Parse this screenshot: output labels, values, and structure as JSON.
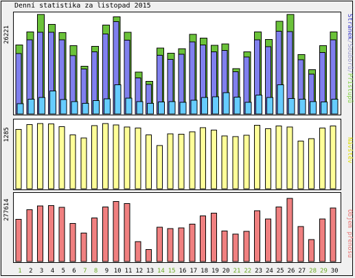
{
  "title": "Denní statistika za listopad 2015",
  "panels": {
    "traffic": {
      "ymax_label": "26221",
      "legend": [
        {
          "text": "Stránek",
          "color": "#3737c8"
        },
        {
          "text": "/",
          "color": "#9999cc"
        },
        {
          "text": "Souborů",
          "color": "#9999cc"
        },
        {
          "text": "/",
          "color": "#9999cc"
        },
        {
          "text": "Přístupů",
          "color": "#80d040"
        }
      ]
    },
    "visits": {
      "ymax_label": "1285",
      "legend_text": "Návštěv",
      "legend_color": "#dddd00"
    },
    "bytes": {
      "ymax_label": "277614",
      "legend_text": "Objem přenosu",
      "legend_color": "#e87070"
    }
  },
  "colors": {
    "hits": "#6bc23a",
    "files": "#8080ee",
    "pages": "#66ccff",
    "visits": "#ffff99",
    "bytes": "#f08080",
    "weekday_label": "#000000",
    "weekend_label": "#6aaa22"
  },
  "chart_data": [
    {
      "type": "bar",
      "title": "Denní statistika za listopad 2015",
      "categories": [
        "1",
        "2",
        "3",
        "4",
        "5",
        "6",
        "7",
        "8",
        "9",
        "10",
        "11",
        "12",
        "13",
        "14",
        "15",
        "16",
        "17",
        "18",
        "19",
        "20",
        "21",
        "22",
        "23",
        "24",
        "25",
        "26",
        "27",
        "28",
        "29",
        "30"
      ],
      "weekend_days": [
        "1",
        "7",
        "8",
        "14",
        "15",
        "21",
        "22",
        "28",
        "29"
      ],
      "ylim": [
        0,
        26221
      ],
      "series": [
        {
          "name": "Přístupů",
          "values": [
            18200,
            21600,
            26200,
            23600,
            21400,
            18000,
            12600,
            17800,
            23400,
            25600,
            21500,
            11000,
            8600,
            17400,
            16000,
            17200,
            21000,
            20000,
            18100,
            18400,
            11900,
            16400,
            21600,
            19600,
            24400,
            26200,
            15600,
            11700,
            18000,
            21600
          ]
        },
        {
          "name": "Souborů",
          "values": [
            15900,
            19500,
            21500,
            21500,
            19500,
            15400,
            11800,
            16400,
            21100,
            24300,
            19400,
            9500,
            7800,
            15500,
            14400,
            15700,
            19000,
            18200,
            16400,
            16700,
            11100,
            15000,
            19500,
            17700,
            21800,
            21700,
            14300,
            10500,
            16200,
            19500
          ]
        },
        {
          "name": "Stránek",
          "values": [
            2700,
            3900,
            4300,
            6100,
            3800,
            3300,
            2800,
            3500,
            4000,
            7700,
            4200,
            3300,
            2800,
            3200,
            3300,
            3100,
            3600,
            4300,
            4500,
            5600,
            4400,
            3100,
            5000,
            4300,
            7700,
            4100,
            3900,
            3300,
            3200,
            3900
          ]
        }
      ]
    },
    {
      "type": "bar",
      "categories": [
        "1",
        "2",
        "3",
        "4",
        "5",
        "6",
        "7",
        "8",
        "9",
        "10",
        "11",
        "12",
        "13",
        "14",
        "15",
        "16",
        "17",
        "18",
        "19",
        "20",
        "21",
        "22",
        "23",
        "24",
        "25",
        "26",
        "27",
        "28",
        "29",
        "30"
      ],
      "ylim": [
        0,
        1285
      ],
      "series": [
        {
          "name": "Návštěv",
          "values": [
            1170,
            1265,
            1285,
            1275,
            1225,
            1060,
            1000,
            1245,
            1285,
            1260,
            1215,
            1200,
            1060,
            850,
            1085,
            1075,
            1120,
            1205,
            1155,
            1040,
            1025,
            1055,
            1250,
            1185,
            1240,
            1220,
            940,
            990,
            1195,
            1235
          ]
        }
      ]
    },
    {
      "type": "bar",
      "categories": [
        "1",
        "2",
        "3",
        "4",
        "5",
        "6",
        "7",
        "8",
        "9",
        "10",
        "11",
        "12",
        "13",
        "14",
        "15",
        "16",
        "17",
        "18",
        "19",
        "20",
        "21",
        "22",
        "23",
        "24",
        "25",
        "26",
        "27",
        "28",
        "29",
        "30"
      ],
      "ylim": [
        0,
        277614
      ],
      "series": [
        {
          "name": "Objem přenosu",
          "values": [
            183000,
            225000,
            242000,
            244000,
            236000,
            166000,
            124000,
            190000,
            237000,
            261000,
            252000,
            86000,
            52000,
            149000,
            144000,
            146000,
            162000,
            199000,
            210000,
            133000,
            120000,
            131000,
            221000,
            185000,
            238000,
            275000,
            152000,
            95000,
            185000,
            233000
          ]
        }
      ]
    }
  ]
}
